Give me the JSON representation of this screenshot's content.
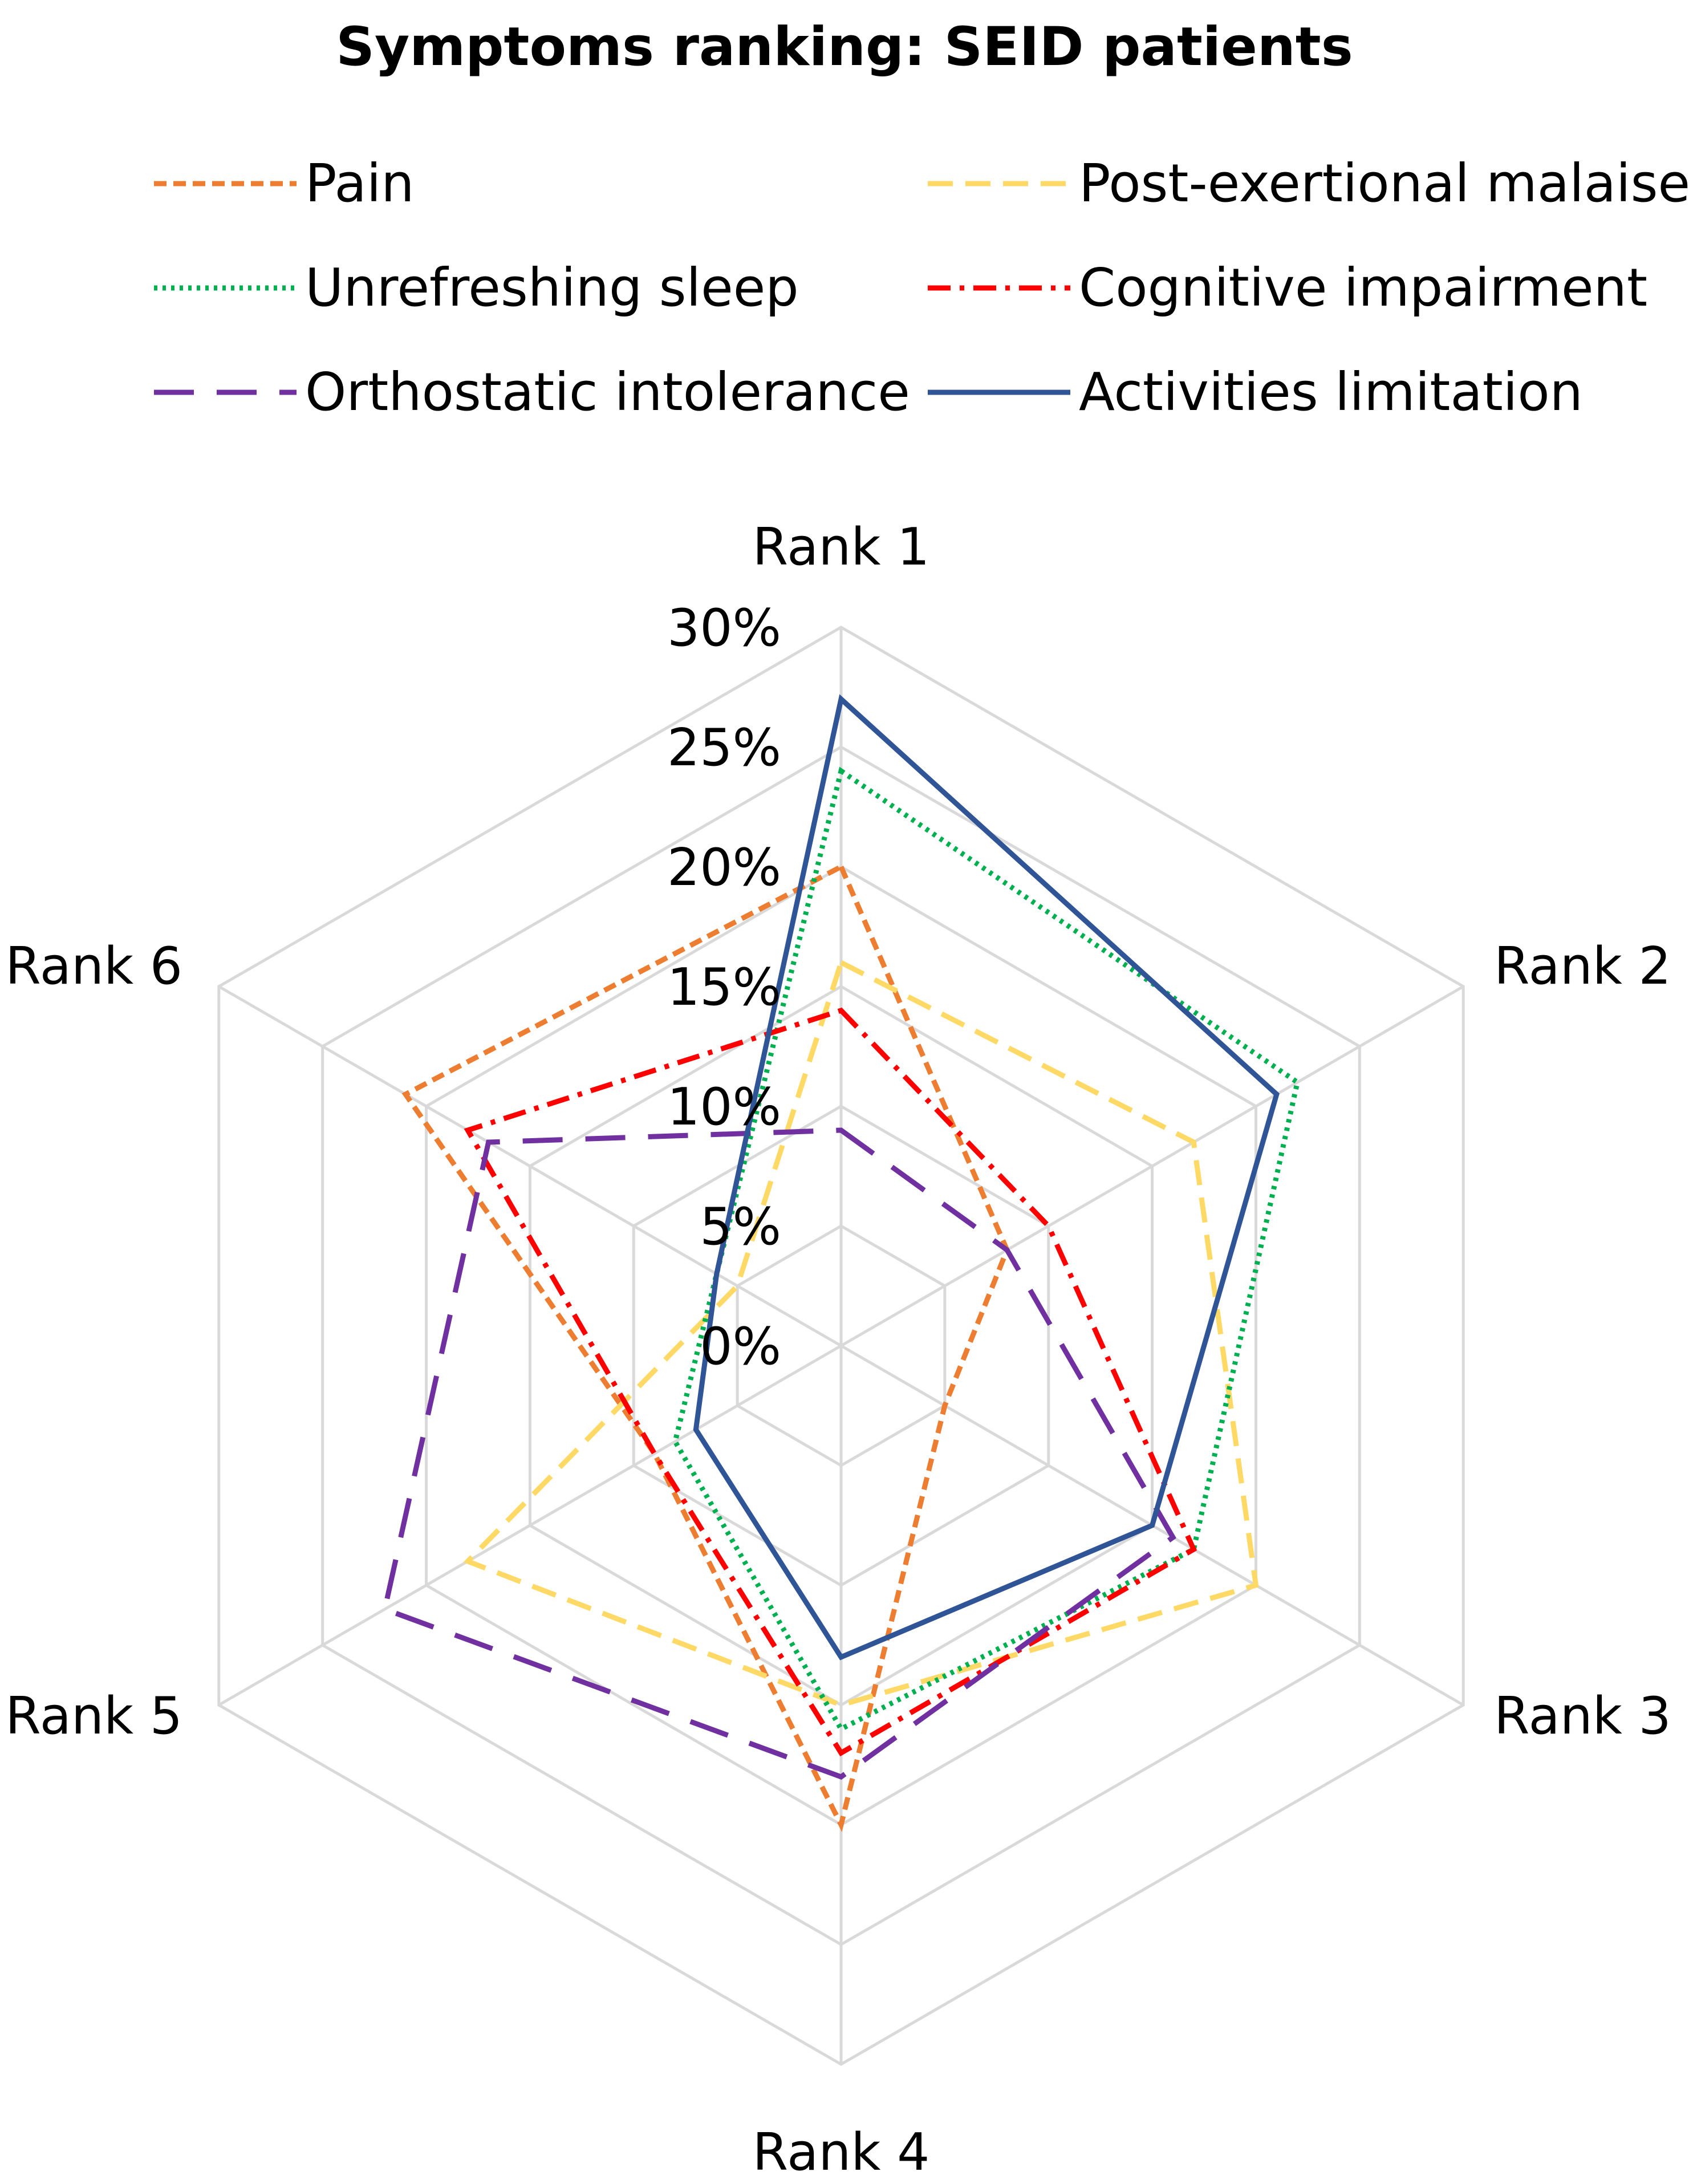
{
  "chart_data": {
    "type": "radar",
    "title": "Symptoms ranking: SEID patients",
    "categories": [
      "Rank 1",
      "Rank 2",
      "Rank 3",
      "Rank 4",
      "Rank 5",
      "Rank 6"
    ],
    "rlim": [
      0,
      30
    ],
    "ticks": [
      "0%",
      "5%",
      "10%",
      "15%",
      "20%",
      "25%",
      "30%"
    ],
    "tick_values": [
      0,
      5,
      10,
      15,
      20,
      25,
      30
    ],
    "grid": true,
    "legend_position": "top",
    "series": [
      {
        "name": "Pain",
        "color": "#ED7D31",
        "dash": "short-dash",
        "values": [
          20,
          8,
          5,
          20,
          9,
          21
        ]
      },
      {
        "name": "Post-exertional malaise",
        "color": "#FFD966",
        "dash": "long-dash",
        "values": [
          16,
          17,
          20,
          15,
          18,
          5
        ]
      },
      {
        "name": "Unrefreshing sleep",
        "color": "#00B050",
        "dash": "dot",
        "values": [
          24,
          22,
          17,
          16,
          8,
          6
        ]
      },
      {
        "name": "Cognitive impairment",
        "color": "#FF0000",
        "dash": "dash-dot",
        "values": [
          14,
          10,
          17,
          17,
          9,
          18
        ]
      },
      {
        "name": "Orthostatic intolerance",
        "color": "#7030A0",
        "dash": "long-dash-gap",
        "values": [
          9,
          8,
          16,
          18,
          22,
          17
        ]
      },
      {
        "name": "Activities limitation",
        "color": "#2F5597",
        "dash": "solid",
        "values": [
          27,
          21,
          15,
          13,
          7,
          6
        ]
      }
    ]
  }
}
